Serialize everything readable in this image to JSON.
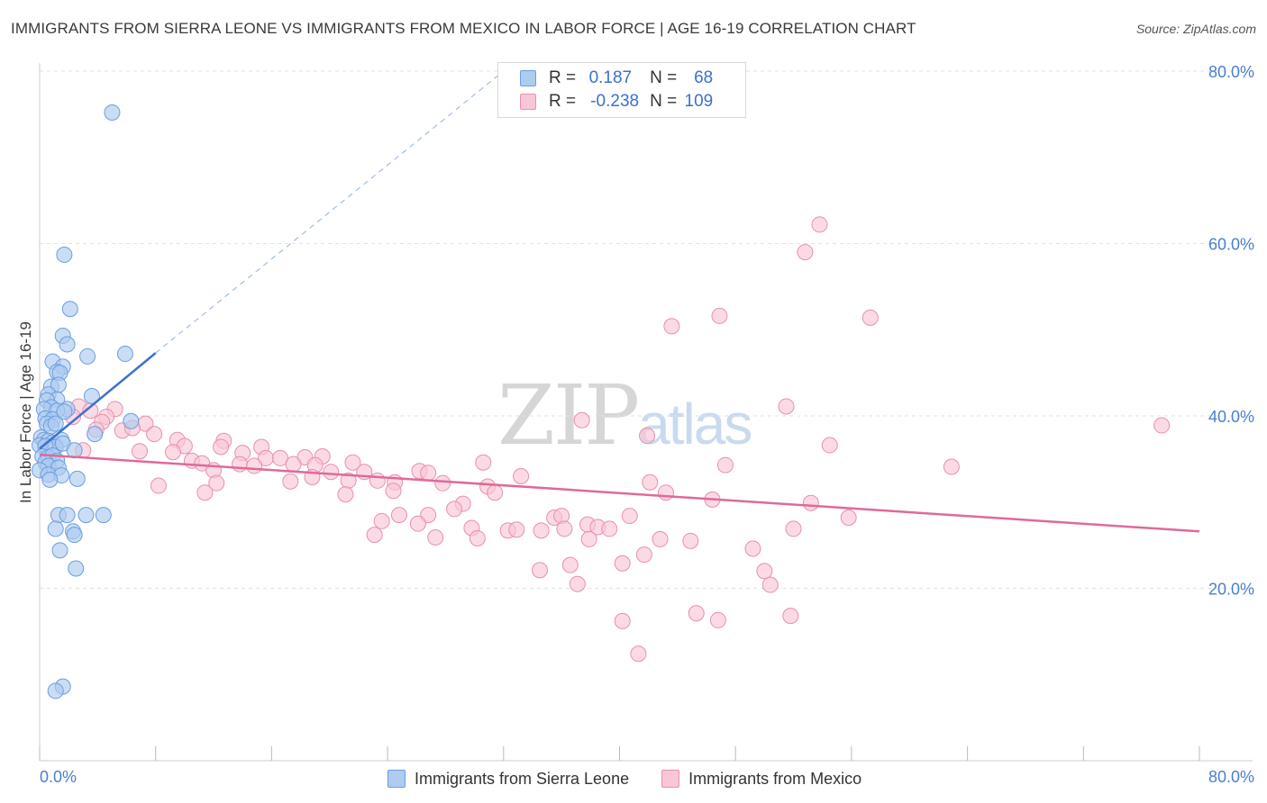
{
  "header": {
    "title": "IMMIGRANTS FROM SIERRA LEONE VS IMMIGRANTS FROM MEXICO IN LABOR FORCE | AGE 16-19 CORRELATION CHART",
    "source": "Source: ZipAtlas.com"
  },
  "watermark": {
    "zip": "ZIP",
    "atlas": "atlas"
  },
  "legend": {
    "rows": [
      {
        "r_label": "R =",
        "r_value": "0.187",
        "n_label": "N =",
        "n_value": "68",
        "color": "#aecbf0",
        "border": "#6a9ee0"
      },
      {
        "r_label": "R =",
        "r_value": "-0.238",
        "n_label": "N =",
        "n_value": "109",
        "color": "#f9c6d6",
        "border": "#e88fae"
      }
    ]
  },
  "bottom_legend": {
    "items": [
      {
        "label": "Immigrants from Sierra Leone",
        "color": "#aecbf0",
        "border": "#6a9ee0"
      },
      {
        "label": "Immigrants from Mexico",
        "color": "#f9c6d6",
        "border": "#e88fae"
      }
    ]
  },
  "chart_data": {
    "type": "scatter",
    "title": "IMMIGRANTS FROM SIERRA LEONE VS IMMIGRANTS FROM MEXICO IN LABOR FORCE | AGE 16-19 CORRELATION CHART",
    "xlabel": "",
    "ylabel": "In Labor Force | Age 16-19",
    "xlim": [
      0,
      80
    ],
    "ylim": [
      0,
      80
    ],
    "x_tick_labels": [
      "0.0%",
      "80.0%"
    ],
    "y_ticks": [
      {
        "value": 20,
        "label": "20.0%"
      },
      {
        "value": 40,
        "label": "40.0%"
      },
      {
        "value": 60,
        "label": "60.0%"
      },
      {
        "value": 80,
        "label": "80.0%"
      }
    ],
    "grid": true,
    "legend_position": "top-center",
    "series": [
      {
        "name": "Immigrants from Sierra Leone",
        "color": "#6a9ee0",
        "fill": "#aecbf0",
        "trend": {
          "x": [
            0,
            8
          ],
          "y": [
            36.2,
            47.3
          ],
          "dashed_to": [
            32,
            80
          ]
        },
        "points": [
          [
            5,
            75.2
          ],
          [
            1.7,
            58.7
          ],
          [
            2.1,
            52.4
          ],
          [
            1.6,
            49.3
          ],
          [
            1.9,
            48.3
          ],
          [
            3.3,
            46.9
          ],
          [
            5.9,
            47.2
          ],
          [
            0.9,
            46.3
          ],
          [
            1.6,
            45.7
          ],
          [
            1.2,
            45.1
          ],
          [
            1.4,
            45
          ],
          [
            0.8,
            43.4
          ],
          [
            1.3,
            43.6
          ],
          [
            0.6,
            42.5
          ],
          [
            1.2,
            41.9
          ],
          [
            3.6,
            42.3
          ],
          [
            0.5,
            41.8
          ],
          [
            0.8,
            41
          ],
          [
            1.9,
            40.8
          ],
          [
            0.3,
            40.8
          ],
          [
            1.2,
            40.6
          ],
          [
            0.4,
            39.7
          ],
          [
            0.9,
            39.6
          ],
          [
            1.7,
            40.5
          ],
          [
            6.3,
            39.4
          ],
          [
            0.5,
            39.1
          ],
          [
            0.8,
            38.8
          ],
          [
            1.1,
            39.1
          ],
          [
            3.8,
            37.9
          ],
          [
            0.1,
            37.5
          ],
          [
            0.3,
            37.2
          ],
          [
            0.6,
            37.1
          ],
          [
            0.9,
            36.9
          ],
          [
            1.5,
            37.2
          ],
          [
            1.1,
            36.4
          ],
          [
            0,
            36.6
          ],
          [
            1.6,
            36.8
          ],
          [
            2.4,
            36
          ],
          [
            0.4,
            36.5
          ],
          [
            0.2,
            35.3
          ],
          [
            0.6,
            35.2
          ],
          [
            0.9,
            35.4
          ],
          [
            1.2,
            34.8
          ],
          [
            0.4,
            34.6
          ],
          [
            0.6,
            34.2
          ],
          [
            1.3,
            34
          ],
          [
            0,
            33.7
          ],
          [
            0.6,
            33.2
          ],
          [
            1.5,
            33.1
          ],
          [
            0.7,
            32.6
          ],
          [
            2.6,
            32.7
          ],
          [
            1.3,
            28.5
          ],
          [
            1.9,
            28.5
          ],
          [
            3.2,
            28.5
          ],
          [
            4.4,
            28.5
          ],
          [
            1.1,
            26.9
          ],
          [
            2.3,
            26.6
          ],
          [
            2.4,
            26.2
          ],
          [
            1.4,
            24.4
          ],
          [
            2.5,
            22.3
          ],
          [
            1.6,
            8.6
          ],
          [
            1.1,
            8.1
          ]
        ]
      },
      {
        "name": "Immigrants from Mexico",
        "color": "#e88fae",
        "fill": "#f9c6d6",
        "trend": {
          "x": [
            0,
            80
          ],
          "y": [
            35.5,
            26.6
          ]
        },
        "points": [
          [
            53.8,
            62.2
          ],
          [
            52.8,
            59
          ],
          [
            46.9,
            51.6
          ],
          [
            57.3,
            51.4
          ],
          [
            43.6,
            50.4
          ],
          [
            77.4,
            38.9
          ],
          [
            51.5,
            41.1
          ],
          [
            37.4,
            39.5
          ],
          [
            41.9,
            37.7
          ],
          [
            54.5,
            36.6
          ],
          [
            62.9,
            34.1
          ],
          [
            47.3,
            34.3
          ],
          [
            2.7,
            41.1
          ],
          [
            3.5,
            40.6
          ],
          [
            5.2,
            40.8
          ],
          [
            4.6,
            39.9
          ],
          [
            2.3,
            39.9
          ],
          [
            4.3,
            39.3
          ],
          [
            7.3,
            39.1
          ],
          [
            3.9,
            38.4
          ],
          [
            5.7,
            38.3
          ],
          [
            6.4,
            38.6
          ],
          [
            7.9,
            37.9
          ],
          [
            9.5,
            37.2
          ],
          [
            12.7,
            37.1
          ],
          [
            10,
            36.5
          ],
          [
            12.5,
            36.4
          ],
          [
            15.3,
            36.4
          ],
          [
            3,
            36
          ],
          [
            6.9,
            35.9
          ],
          [
            9.2,
            35.8
          ],
          [
            14,
            35.7
          ],
          [
            15.6,
            35.1
          ],
          [
            16.6,
            35.1
          ],
          [
            18.3,
            35.2
          ],
          [
            19.5,
            35.3
          ],
          [
            10.5,
            34.8
          ],
          [
            11.2,
            34.5
          ],
          [
            13.8,
            34.4
          ],
          [
            17.5,
            34.4
          ],
          [
            21.6,
            34.6
          ],
          [
            14.8,
            34.2
          ],
          [
            19,
            34.3
          ],
          [
            30.6,
            34.6
          ],
          [
            12,
            33.7
          ],
          [
            20.1,
            33.5
          ],
          [
            22.4,
            33.5
          ],
          [
            26.2,
            33.6
          ],
          [
            26.8,
            33.4
          ],
          [
            33.2,
            33
          ],
          [
            18.8,
            32.9
          ],
          [
            21.3,
            32.5
          ],
          [
            17.3,
            32.4
          ],
          [
            23.3,
            32.5
          ],
          [
            24.5,
            32.3
          ],
          [
            12.2,
            32.2
          ],
          [
            27.8,
            32.2
          ],
          [
            30.9,
            31.8
          ],
          [
            8.2,
            31.9
          ],
          [
            24.4,
            31.3
          ],
          [
            11.4,
            31.1
          ],
          [
            31.4,
            31.1
          ],
          [
            43.2,
            31.1
          ],
          [
            42.1,
            32.3
          ],
          [
            46.4,
            30.3
          ],
          [
            53.2,
            29.9
          ],
          [
            29.2,
            29.8
          ],
          [
            21.1,
            30.9
          ],
          [
            28.6,
            29.2
          ],
          [
            24.8,
            28.5
          ],
          [
            26.8,
            28.5
          ],
          [
            23.6,
            27.8
          ],
          [
            26.1,
            27.5
          ],
          [
            35.5,
            28.2
          ],
          [
            36,
            28.4
          ],
          [
            40.7,
            28.4
          ],
          [
            55.8,
            28.2
          ],
          [
            37.8,
            27.4
          ],
          [
            29.8,
            27
          ],
          [
            32.3,
            26.7
          ],
          [
            34.6,
            26.7
          ],
          [
            38.5,
            27.1
          ],
          [
            32.9,
            26.8
          ],
          [
            39.3,
            26.9
          ],
          [
            36.2,
            26.9
          ],
          [
            52,
            26.9
          ],
          [
            23.1,
            26.2
          ],
          [
            27.3,
            25.9
          ],
          [
            30.2,
            25.8
          ],
          [
            37.9,
            25.7
          ],
          [
            44.9,
            25.5
          ],
          [
            42.8,
            25.7
          ],
          [
            41.7,
            23.9
          ],
          [
            49.2,
            24.6
          ],
          [
            36.6,
            22.7
          ],
          [
            34.5,
            22.1
          ],
          [
            50,
            22
          ],
          [
            40.2,
            22.9
          ],
          [
            37.1,
            20.5
          ],
          [
            50.4,
            20.4
          ],
          [
            45.3,
            17.1
          ],
          [
            46.8,
            16.3
          ],
          [
            51.8,
            16.8
          ],
          [
            40.2,
            16.2
          ],
          [
            41.3,
            12.4
          ]
        ]
      }
    ]
  }
}
